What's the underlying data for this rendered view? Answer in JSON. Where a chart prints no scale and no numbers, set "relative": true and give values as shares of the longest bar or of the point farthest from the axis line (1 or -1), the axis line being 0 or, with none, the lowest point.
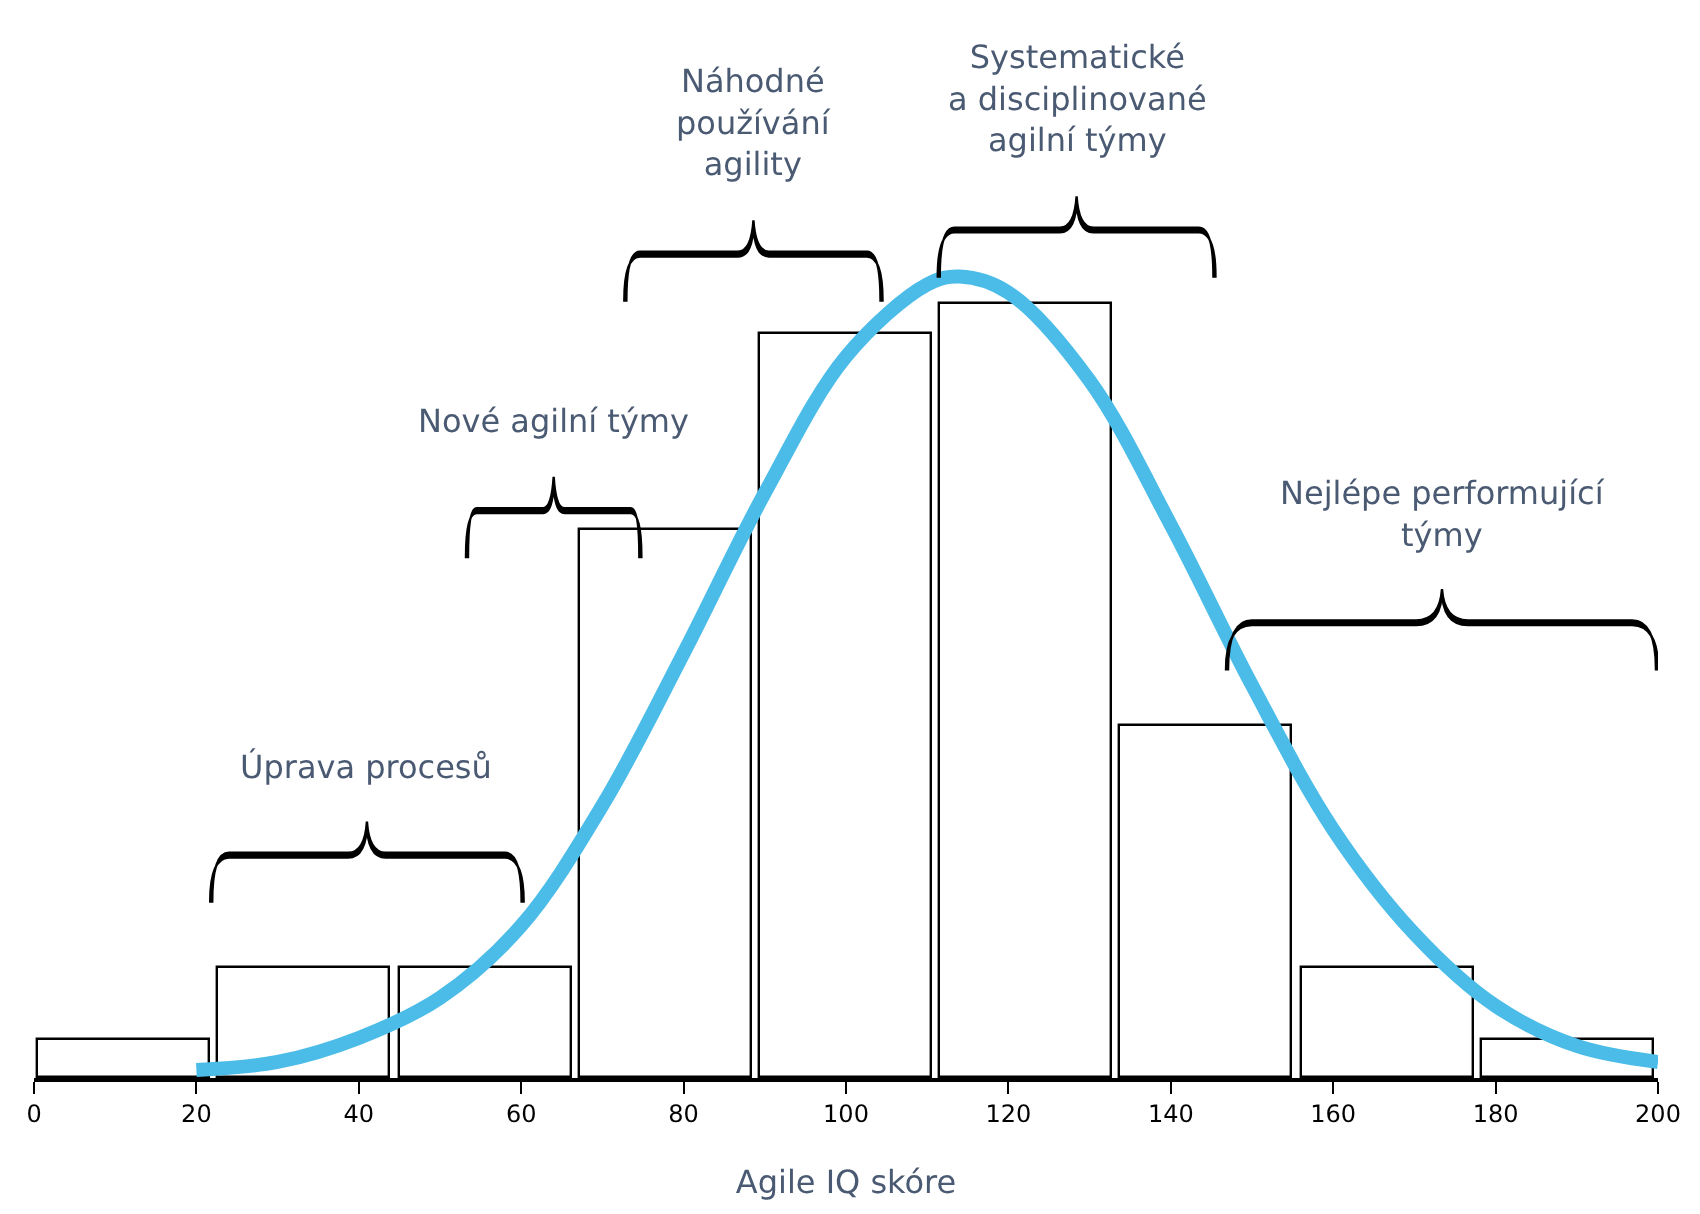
{
  "chart_data": {
    "type": "histogram",
    "relative": true,
    "xlabel": "Agile IQ skóre",
    "bins": [
      0,
      22.2,
      44.4,
      66.7,
      88.9,
      111.1,
      133.3,
      155.6,
      177.8,
      200
    ],
    "values": [
      0.047,
      0.137,
      0.137,
      0.684,
      0.928,
      0.965,
      0.44,
      0.137,
      0.047
    ],
    "color": "#ffffff",
    "series": [
      {
        "type": "line",
        "color": "#4bbce8",
        "x": [
          20,
          30,
          40,
          50,
          60,
          70,
          80,
          90,
          100,
          110,
          114,
          120,
          130,
          140,
          150,
          160,
          170,
          180,
          190,
          200
        ],
        "values": [
          0.01,
          0.02,
          0.05,
          0.1,
          0.19,
          0.34,
          0.53,
          0.73,
          0.9,
          0.99,
          1,
          0.98,
          0.87,
          0.69,
          0.49,
          0.31,
          0.18,
          0.09,
          0.04,
          0.02
        ]
      }
    ],
    "xlim": [
      0,
      200
    ],
    "xticks": [
      0,
      20,
      40,
      60,
      80,
      100,
      120,
      140,
      160,
      180,
      200
    ],
    "annotations": [
      "Úprava procesů",
      "Nové agilní týmy",
      "Náhodné\npoužívání\nagility",
      "Systematické\na disciplinované\nagilní týmy",
      "Nejlépe performující\ntýmy"
    ]
  }
}
